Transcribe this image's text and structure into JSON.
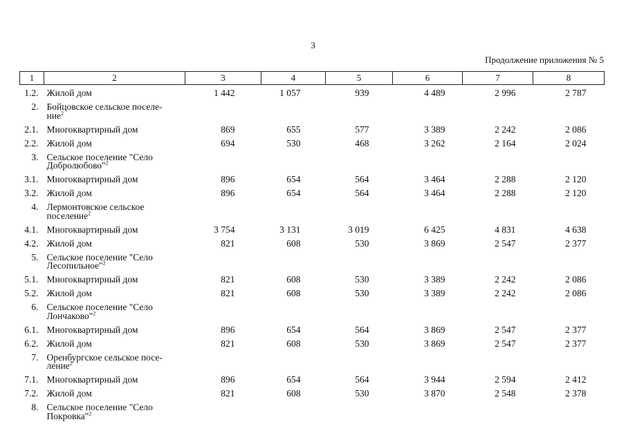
{
  "page": {
    "number": "3",
    "caption": "Продолжение приложения № 5"
  },
  "table": {
    "header": [
      "1",
      "2",
      "3",
      "4",
      "5",
      "6",
      "7",
      "8"
    ],
    "rows": [
      {
        "num": "1.2.",
        "name_lines": [
          "Жилой дом"
        ],
        "sup": "",
        "values": [
          "1 442",
          "1 057",
          "939",
          "4 489",
          "2 996",
          "2 787"
        ]
      },
      {
        "num": "2.",
        "name_lines": [
          "Бойцовское сельское поселе-",
          "ние"
        ],
        "sup": "2",
        "values": [
          "",
          "",
          "",
          "",
          "",
          ""
        ]
      },
      {
        "num": "2.1.",
        "name_lines": [
          "Многоквартирный дом"
        ],
        "sup": "",
        "values": [
          "869",
          "655",
          "577",
          "3 389",
          "2 242",
          "2 086"
        ]
      },
      {
        "num": "2.2.",
        "name_lines": [
          "Жилой дом"
        ],
        "sup": "",
        "values": [
          "694",
          "530",
          "468",
          "3 262",
          "2 164",
          "2 024"
        ]
      },
      {
        "num": "3.",
        "name_lines": [
          "Сельское поселение \"Село",
          "Добролюбово\""
        ],
        "sup": "2",
        "values": [
          "",
          "",
          "",
          "",
          "",
          ""
        ]
      },
      {
        "num": "3.1.",
        "name_lines": [
          "Многоквартирный дом"
        ],
        "sup": "",
        "values": [
          "896",
          "654",
          "564",
          "3 464",
          "2 288",
          "2 120"
        ]
      },
      {
        "num": "3.2.",
        "name_lines": [
          "Жилой дом"
        ],
        "sup": "",
        "values": [
          "896",
          "654",
          "564",
          "3 464",
          "2 288",
          "2 120"
        ]
      },
      {
        "num": "4.",
        "name_lines": [
          "Лермонтовское сельское",
          "поселение"
        ],
        "sup": "2",
        "values": [
          "",
          "",
          "",
          "",
          "",
          ""
        ]
      },
      {
        "num": "4.1.",
        "name_lines": [
          "Многоквартирный дом"
        ],
        "sup": "",
        "values": [
          "3 754",
          "3 131",
          "3 019",
          "6 425",
          "4 831",
          "4 638"
        ]
      },
      {
        "num": "4.2.",
        "name_lines": [
          "Жилой дом"
        ],
        "sup": "",
        "values": [
          "821",
          "608",
          "530",
          "3 869",
          "2 547",
          "2 377"
        ]
      },
      {
        "num": "5.",
        "name_lines": [
          "Сельское поселение \"Село",
          "Лесопильное\""
        ],
        "sup": "2",
        "values": [
          "",
          "",
          "",
          "",
          "",
          ""
        ]
      },
      {
        "num": "5.1.",
        "name_lines": [
          "Многоквартирный дом"
        ],
        "sup": "",
        "values": [
          "821",
          "608",
          "530",
          "3 389",
          "2 242",
          "2 086"
        ]
      },
      {
        "num": "5.2.",
        "name_lines": [
          "Жилой дом"
        ],
        "sup": "",
        "values": [
          "821",
          "608",
          "530",
          "3 389",
          "2 242",
          "2 086"
        ]
      },
      {
        "num": "6.",
        "name_lines": [
          "Сельское поселение \"Село",
          "Лончаково\""
        ],
        "sup": "2",
        "values": [
          "",
          "",
          "",
          "",
          "",
          ""
        ]
      },
      {
        "num": "6.1.",
        "name_lines": [
          "Многоквартирный дом"
        ],
        "sup": "",
        "values": [
          "896",
          "654",
          "564",
          "3 869",
          "2 547",
          "2 377"
        ]
      },
      {
        "num": "6.2.",
        "name_lines": [
          "Жилой дом"
        ],
        "sup": "",
        "values": [
          "821",
          "608",
          "530",
          "3 869",
          "2 547",
          "2 377"
        ]
      },
      {
        "num": "7.",
        "name_lines": [
          "Оренбургское сельское посе-",
          "ление"
        ],
        "sup": "2",
        "values": [
          "",
          "",
          "",
          "",
          "",
          ""
        ]
      },
      {
        "num": "7.1.",
        "name_lines": [
          "Многоквартирный дом"
        ],
        "sup": "",
        "values": [
          "896",
          "654",
          "564",
          "3 944",
          "2 594",
          "2 412"
        ]
      },
      {
        "num": "7.2.",
        "name_lines": [
          "Жилой дом"
        ],
        "sup": "",
        "values": [
          "821",
          "608",
          "530",
          "3 870",
          "2 548",
          "2 378"
        ]
      },
      {
        "num": "8.",
        "name_lines": [
          "Сельское поселение \"Село",
          "Покровка\""
        ],
        "sup": "2",
        "values": [
          "",
          "",
          "",
          "",
          "",
          ""
        ]
      }
    ]
  }
}
